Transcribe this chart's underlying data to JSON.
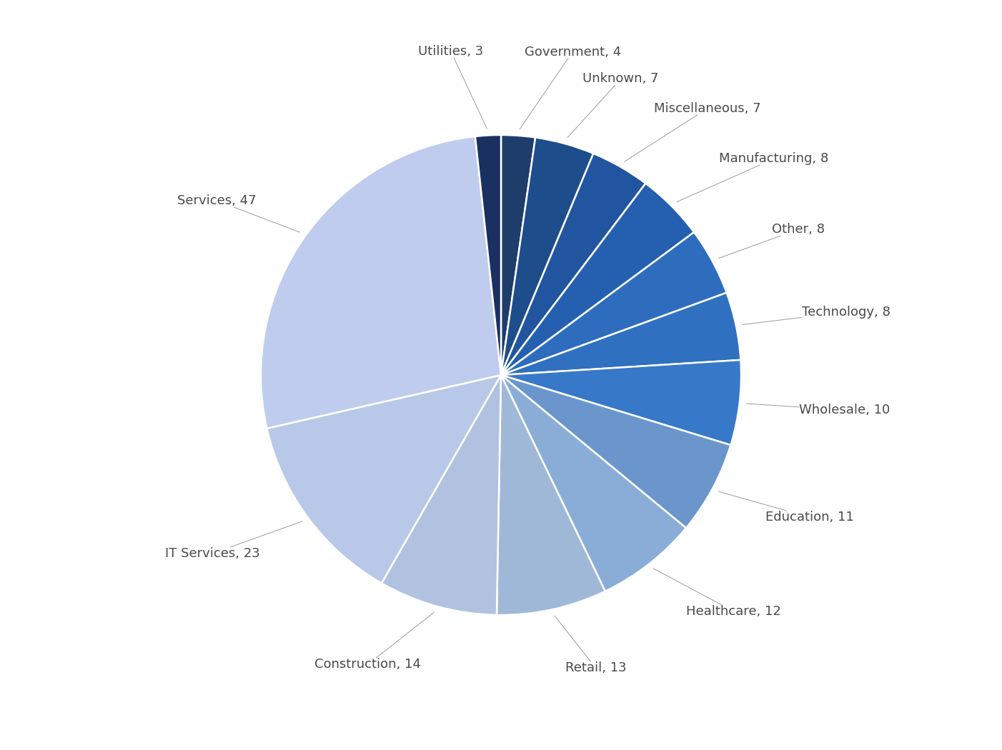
{
  "sectors": [
    {
      "label": "Government",
      "value": 4,
      "color": "#1e3d6b"
    },
    {
      "label": "Unknown",
      "value": 7,
      "color": "#1e4d8c"
    },
    {
      "label": "Miscellaneous",
      "value": 7,
      "color": "#2155a0"
    },
    {
      "label": "Manufacturing",
      "value": 8,
      "color": "#2560b0"
    },
    {
      "label": "Other",
      "value": 8,
      "color": "#2e6dbe"
    },
    {
      "label": "Technology",
      "value": 8,
      "color": "#3070c0"
    },
    {
      "label": "Wholesale",
      "value": 10,
      "color": "#3878c8"
    },
    {
      "label": "Education",
      "value": 11,
      "color": "#6a96cc"
    },
    {
      "label": "Healthcare",
      "value": 12,
      "color": "#8aadd8"
    },
    {
      "label": "Retail",
      "value": 13,
      "color": "#a0b8d8"
    },
    {
      "label": "Construction",
      "value": 14,
      "color": "#b0c2e0"
    },
    {
      "label": "IT Services",
      "value": 23,
      "color": "#b8c8e8"
    },
    {
      "label": "Services",
      "value": 47,
      "color": "#c0ccee"
    },
    {
      "label": "Utilities",
      "value": 3,
      "color": "#1a3060"
    }
  ],
  "background_color": "#ffffff",
  "wedge_edge_color": "#ffffff",
  "wedge_linewidth": 1.8,
  "label_fontsize": 13,
  "label_color": "#4a4a4a",
  "startangle": 90
}
